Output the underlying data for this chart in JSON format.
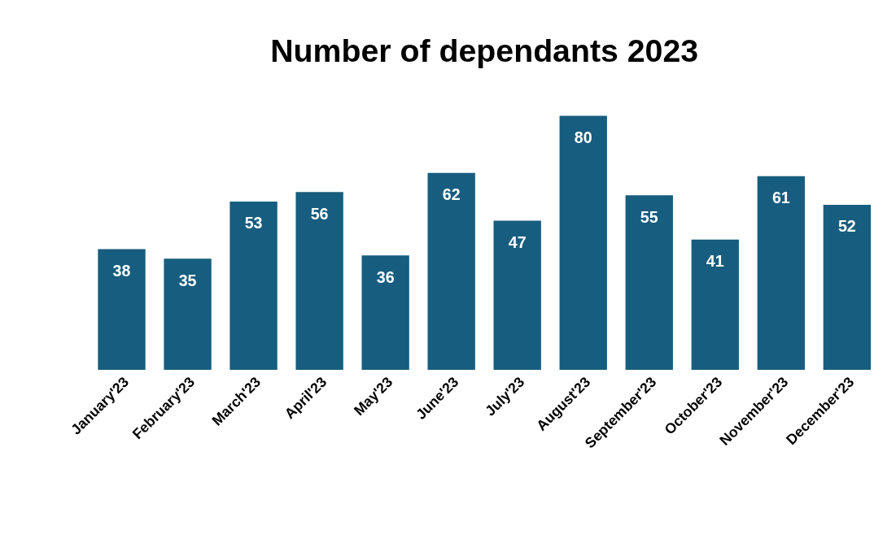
{
  "chart_data": {
    "type": "bar",
    "title": "Number of dependants 2023",
    "categories": [
      "January'23",
      "February'23",
      "March'23",
      "April'23",
      "May'23",
      "June'23",
      "July'23",
      "August'23",
      "September'23",
      "October'23",
      "November'23",
      "December'23"
    ],
    "values": [
      38,
      35,
      53,
      56,
      36,
      62,
      47,
      80,
      55,
      41,
      61,
      52
    ],
    "color": "#175d7f",
    "data_labels": true
  }
}
